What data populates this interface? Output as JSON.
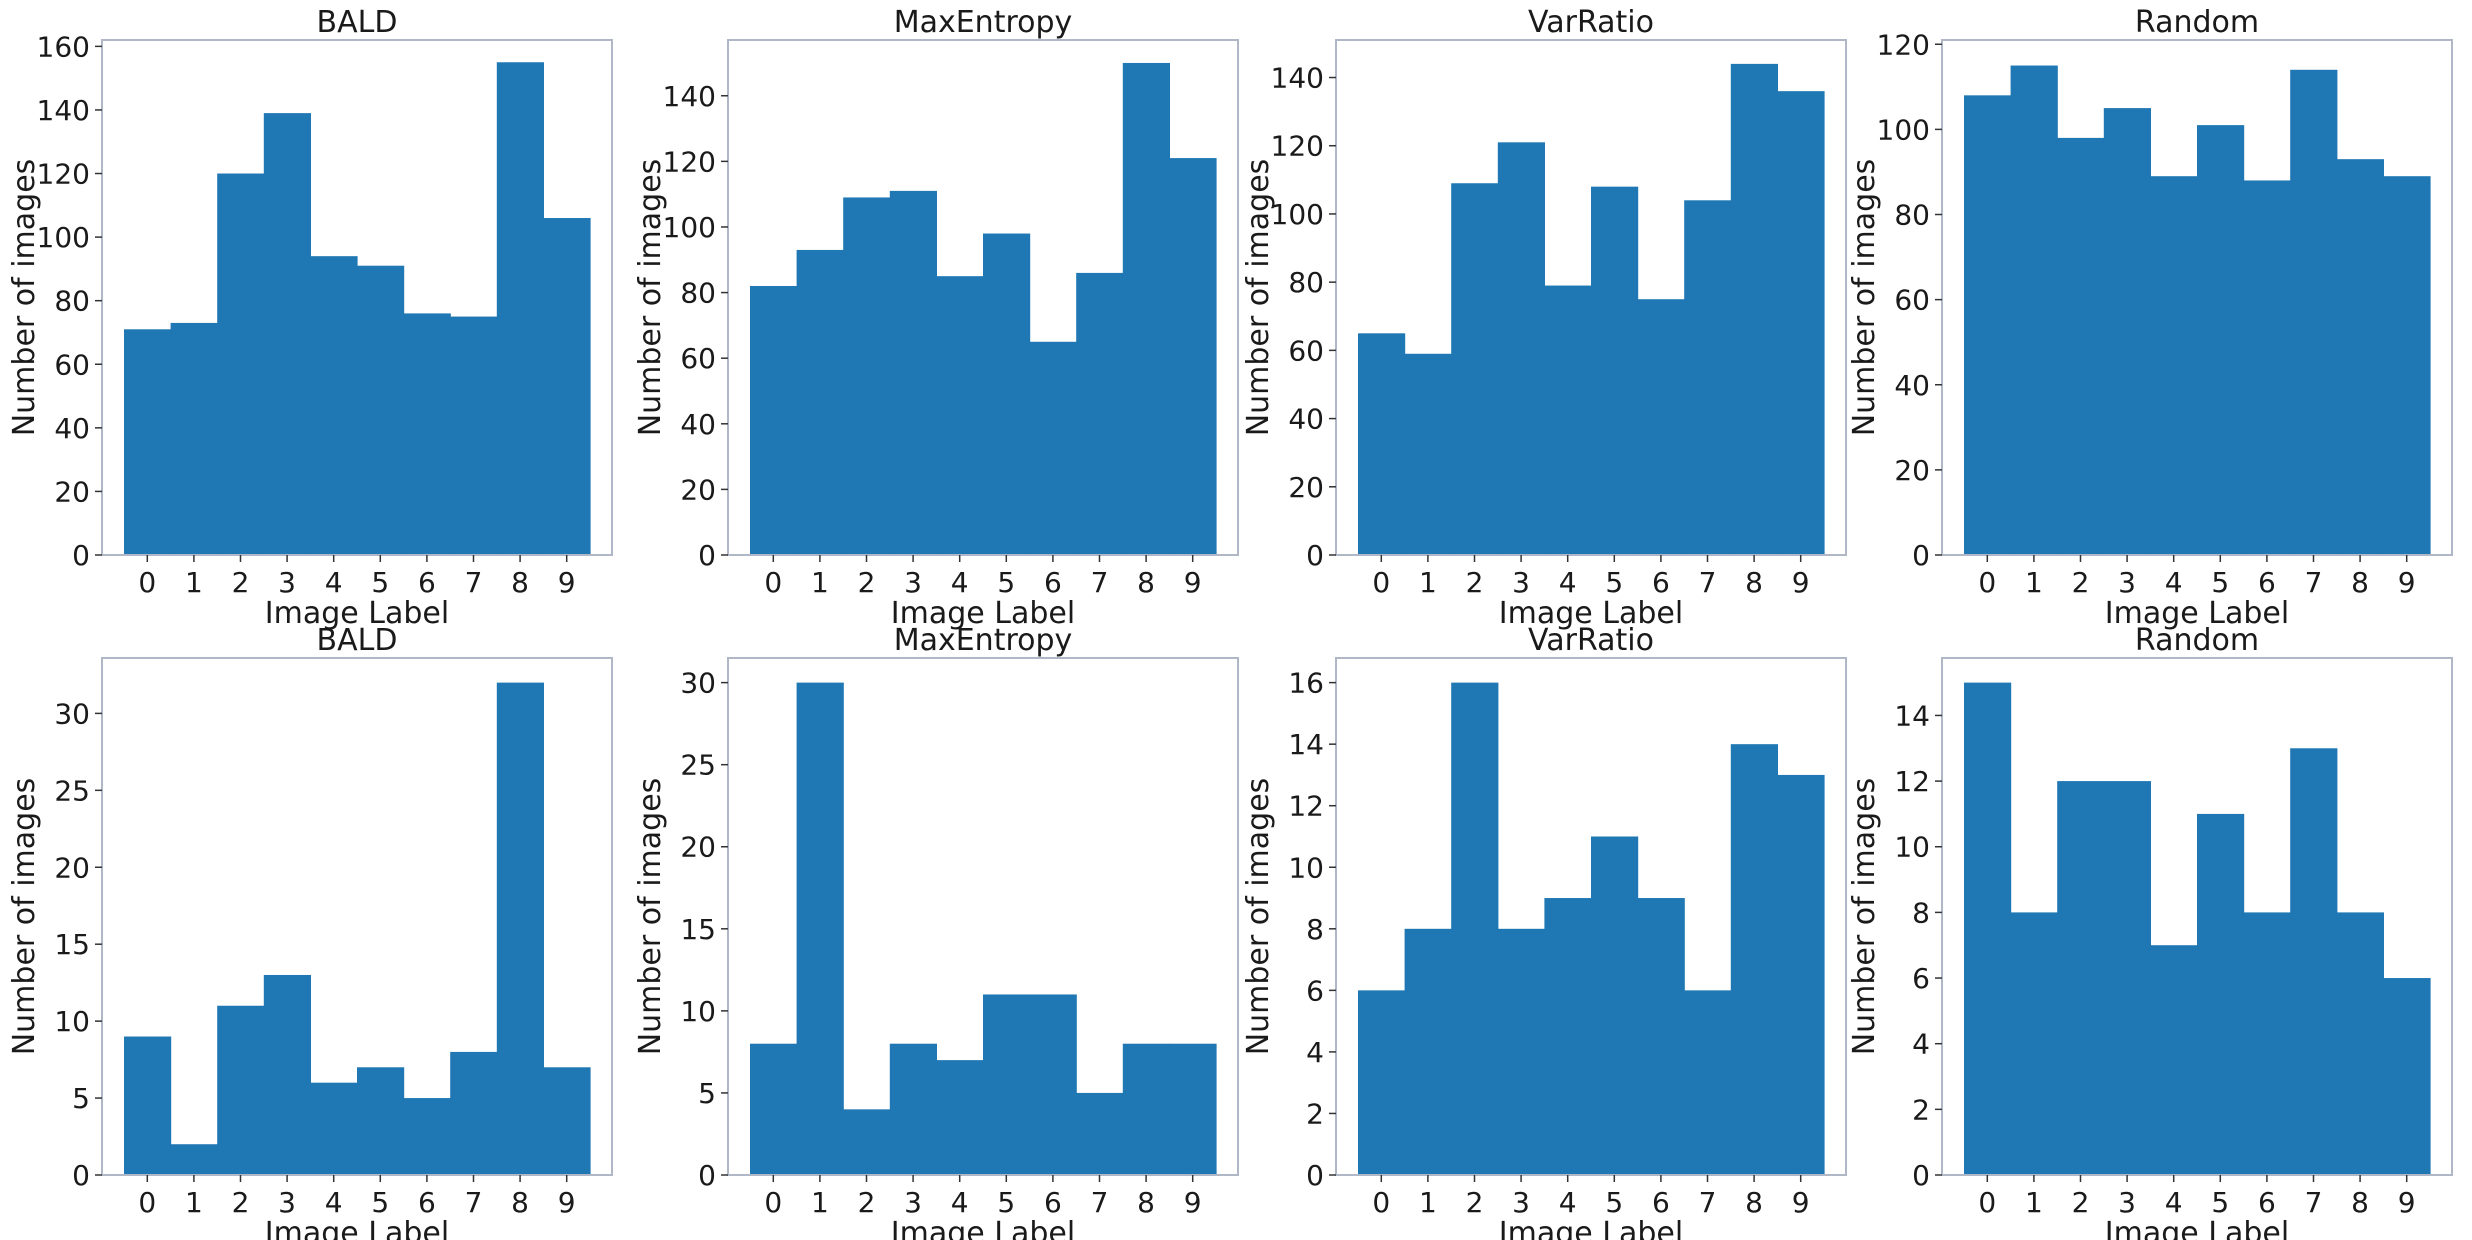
{
  "chart_data": [
    {
      "type": "bar",
      "title": "BALD",
      "xlabel": "Image Label",
      "ylabel": "Number of images",
      "categories": [
        "0",
        "1",
        "2",
        "3",
        "4",
        "5",
        "6",
        "7",
        "8",
        "9"
      ],
      "values": [
        71,
        73,
        120,
        139,
        94,
        91,
        76,
        75,
        155,
        106
      ],
      "xlim": [
        -0.5,
        9.5
      ],
      "ylim": [
        0,
        162
      ],
      "yticks": [
        0,
        20,
        40,
        60,
        80,
        100,
        120,
        140,
        160
      ],
      "color": "#1f77b4",
      "grid": false
    },
    {
      "type": "bar",
      "title": "MaxEntropy",
      "xlabel": "Image Label",
      "ylabel": "Number of images",
      "categories": [
        "0",
        "1",
        "2",
        "3",
        "4",
        "5",
        "6",
        "7",
        "8",
        "9"
      ],
      "values": [
        82,
        93,
        109,
        111,
        85,
        98,
        65,
        86,
        150,
        121
      ],
      "xlim": [
        -0.5,
        9.5
      ],
      "ylim": [
        0,
        157
      ],
      "yticks": [
        0,
        20,
        40,
        60,
        80,
        100,
        120,
        140
      ],
      "color": "#1f77b4",
      "grid": false
    },
    {
      "type": "bar",
      "title": "VarRatio",
      "xlabel": "Image Label",
      "ylabel": "Number of images",
      "categories": [
        "0",
        "1",
        "2",
        "3",
        "4",
        "5",
        "6",
        "7",
        "8",
        "9"
      ],
      "values": [
        65,
        59,
        109,
        121,
        79,
        108,
        75,
        104,
        144,
        136
      ],
      "xlim": [
        -0.5,
        9.5
      ],
      "ylim": [
        0,
        151
      ],
      "yticks": [
        0,
        20,
        40,
        60,
        80,
        100,
        120,
        140
      ],
      "color": "#1f77b4",
      "grid": false
    },
    {
      "type": "bar",
      "title": "Random",
      "xlabel": "Image Label",
      "ylabel": "Number of images",
      "categories": [
        "0",
        "1",
        "2",
        "3",
        "4",
        "5",
        "6",
        "7",
        "8",
        "9"
      ],
      "values": [
        108,
        115,
        98,
        105,
        89,
        101,
        88,
        114,
        93,
        89
      ],
      "xlim": [
        -0.5,
        9.5
      ],
      "ylim": [
        0,
        121
      ],
      "yticks": [
        0,
        20,
        40,
        60,
        80,
        100,
        120
      ],
      "color": "#1f77b4",
      "grid": false
    },
    {
      "type": "bar",
      "title": "BALD",
      "xlabel": "Image Label",
      "ylabel": "Number of images",
      "categories": [
        "0",
        "1",
        "2",
        "3",
        "4",
        "5",
        "6",
        "7",
        "8",
        "9"
      ],
      "values": [
        9,
        2,
        11,
        13,
        6,
        7,
        5,
        8,
        32,
        7
      ],
      "xlim": [
        -0.5,
        9.5
      ],
      "ylim": [
        0,
        33.6
      ],
      "yticks": [
        0,
        5,
        10,
        15,
        20,
        25,
        30
      ],
      "color": "#1f77b4",
      "grid": false
    },
    {
      "type": "bar",
      "title": "MaxEntropy",
      "xlabel": "Image Label",
      "ylabel": "Number of images",
      "categories": [
        "0",
        "1",
        "2",
        "3",
        "4",
        "5",
        "6",
        "7",
        "8",
        "9"
      ],
      "values": [
        8,
        30,
        4,
        8,
        7,
        11,
        11,
        5,
        8,
        8
      ],
      "xlim": [
        -0.5,
        9.5
      ],
      "ylim": [
        0,
        31.5
      ],
      "yticks": [
        0,
        5,
        10,
        15,
        20,
        25,
        30
      ],
      "color": "#1f77b4",
      "grid": false
    },
    {
      "type": "bar",
      "title": "VarRatio",
      "xlabel": "Image Label",
      "ylabel": "Number of images",
      "categories": [
        "0",
        "1",
        "2",
        "3",
        "4",
        "5",
        "6",
        "7",
        "8",
        "9"
      ],
      "values": [
        6,
        8,
        16,
        8,
        9,
        11,
        9,
        6,
        14,
        13
      ],
      "xlim": [
        -0.5,
        9.5
      ],
      "ylim": [
        0,
        16.8
      ],
      "yticks": [
        0,
        2,
        4,
        6,
        8,
        10,
        12,
        14,
        16
      ],
      "color": "#1f77b4",
      "grid": false
    },
    {
      "type": "bar",
      "title": "Random",
      "xlabel": "Image Label",
      "ylabel": "Number of images",
      "categories": [
        "0",
        "1",
        "2",
        "3",
        "4",
        "5",
        "6",
        "7",
        "8",
        "9"
      ],
      "values": [
        15,
        8,
        12,
        12,
        7,
        11,
        8,
        13,
        8,
        6
      ],
      "xlim": [
        -0.5,
        9.5
      ],
      "ylim": [
        0,
        15.75
      ],
      "yticks": [
        0,
        2,
        4,
        6,
        8,
        10,
        12,
        14
      ],
      "color": "#1f77b4",
      "grid": false
    }
  ]
}
